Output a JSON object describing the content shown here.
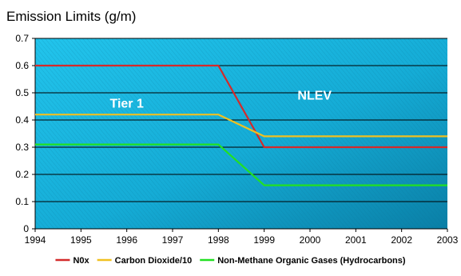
{
  "chart_data": {
    "type": "line",
    "title": "Emission Limits (g/m)",
    "xlabel": "",
    "ylabel": "",
    "x": [
      1994,
      1995,
      1996,
      1997,
      1998,
      1999,
      2000,
      2001,
      2002,
      2003
    ],
    "x_ticks": [
      "1994",
      "1995",
      "1996",
      "1997",
      "1998",
      "1999",
      "2000",
      "2001",
      "2002",
      "2003"
    ],
    "xlim": [
      1994,
      2003
    ],
    "ylim": [
      0,
      0.7
    ],
    "y_ticks": [
      "0",
      "0.1",
      "0.2",
      "0.3",
      "0.4",
      "0.5",
      "0.6",
      "0.7"
    ],
    "grid": true,
    "legend_position": "bottom",
    "plot_background": "#1ab3d9",
    "series": [
      {
        "name": "N0x",
        "color": "#d42a2a",
        "values": [
          0.6,
          0.6,
          0.6,
          0.6,
          0.6,
          0.3,
          0.3,
          0.3,
          0.3,
          0.3
        ]
      },
      {
        "name": "Carbon Dioxide/10",
        "color": "#f0c020",
        "values": [
          0.42,
          0.42,
          0.42,
          0.42,
          0.42,
          0.34,
          0.34,
          0.34,
          0.34,
          0.34
        ]
      },
      {
        "name": "Non-Methane Organic Gases (Hydrocarbons)",
        "color": "#22e022",
        "values": [
          0.31,
          0.31,
          0.31,
          0.31,
          0.31,
          0.16,
          0.16,
          0.16,
          0.16,
          0.16
        ]
      }
    ],
    "annotations": [
      {
        "text": "Tier 1",
        "x": 1996,
        "y": 0.445
      },
      {
        "text": "NLEV",
        "x": 2000.1,
        "y": 0.475
      }
    ]
  }
}
